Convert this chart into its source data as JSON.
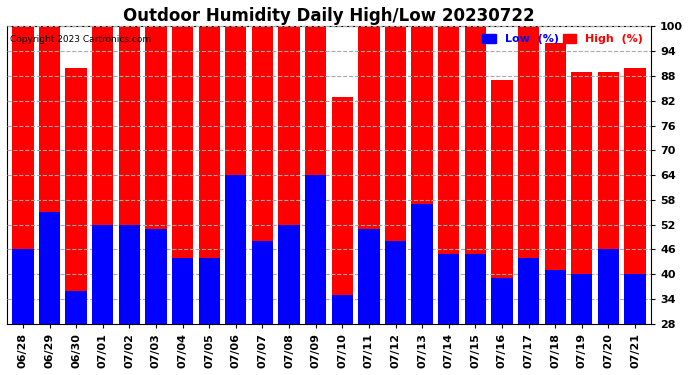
{
  "title": "Outdoor Humidity Daily High/Low 20230722",
  "copyright": "Copyright 2023 Cartronics.com",
  "categories": [
    "06/28",
    "06/29",
    "06/30",
    "07/01",
    "07/02",
    "07/03",
    "07/04",
    "07/05",
    "07/06",
    "07/07",
    "07/08",
    "07/09",
    "07/10",
    "07/11",
    "07/12",
    "07/13",
    "07/14",
    "07/15",
    "07/16",
    "07/17",
    "07/18",
    "07/19",
    "07/20",
    "07/21"
  ],
  "high_values": [
    100,
    100,
    90,
    100,
    100,
    100,
    100,
    100,
    100,
    100,
    100,
    100,
    83,
    100,
    100,
    100,
    100,
    100,
    87,
    100,
    96,
    89,
    89,
    90
  ],
  "low_values": [
    46,
    55,
    36,
    52,
    52,
    51,
    44,
    44,
    64,
    48,
    52,
    64,
    35,
    51,
    48,
    57,
    45,
    45,
    39,
    44,
    41,
    40,
    46,
    40
  ],
  "high_color": "#ff0000",
  "low_color": "#0000ff",
  "background_color": "#ffffff",
  "ymin": 28,
  "ymax": 100,
  "yticks": [
    28,
    34,
    40,
    46,
    52,
    58,
    64,
    70,
    76,
    82,
    88,
    94,
    100
  ],
  "grid_color": "#aaaaaa",
  "bar_width": 0.8,
  "title_fontsize": 12,
  "tick_fontsize": 8,
  "legend_low_label": "Low  (%)",
  "legend_high_label": "High  (%)"
}
